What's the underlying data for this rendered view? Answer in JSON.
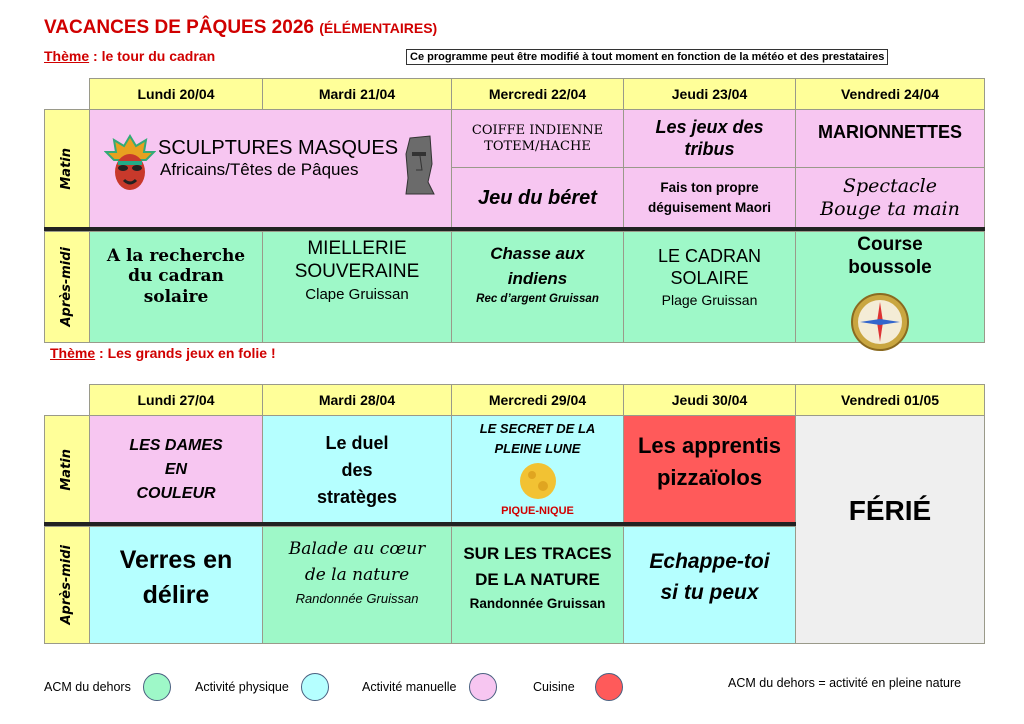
{
  "title": {
    "main": "VACANCES DE PÂQUES 2026",
    "sub": "(ÉLÉMENTAIRES)"
  },
  "notice": "Ce programme peut être modifié à tout moment en fonction de la météo et des prestataires",
  "theme_label": "Thème",
  "row_labels": {
    "morning": "Matin",
    "afternoon": "Après-midi"
  },
  "week1": {
    "theme": ": le tour du cadran",
    "days": [
      "Lundi 20/04",
      "Mardi 21/04",
      "Mercredi 22/04",
      "Jeudi 23/04",
      "Vendredi 24/04"
    ],
    "morning": {
      "lundi_mardi": {
        "line1": "SCULPTURES MASQUES",
        "line2": "Africains/Têtes de Pâques"
      },
      "mercredi_top": {
        "line1": "COIFFE INDIENNE",
        "line2": "TOTEM/HACHE"
      },
      "mercredi_bottom": "Jeu du béret",
      "jeudi_top": {
        "line1": "Les jeux des",
        "line2": "tribus"
      },
      "jeudi_bottom": {
        "line1": "Fais ton propre",
        "line2": "déguisement Maori"
      },
      "vendredi_top": "MARIONNETTES",
      "vendredi_bottom": {
        "line1": "Spectacle",
        "line2": "Bouge ta main"
      }
    },
    "afternoon": {
      "lundi": {
        "line1": "A la recherche",
        "line2": "du cadran",
        "line3": "solaire"
      },
      "mardi": {
        "line1": "MIELLERIE",
        "line2": "SOUVERAINE",
        "place": "Clape Gruissan"
      },
      "mercredi": {
        "line1": "Chasse aux",
        "line2": "indiens",
        "place": "Rec d’argent Gruissan"
      },
      "jeudi": {
        "line1": "LE CADRAN",
        "line2": "SOLAIRE",
        "place": "Plage Gruissan"
      },
      "vendredi": {
        "line1": "Course",
        "line2": "boussole"
      }
    }
  },
  "week2": {
    "theme": ": Les grands jeux en folie !",
    "days": [
      "Lundi 27/04",
      "Mardi 28/04",
      "Mercredi 29/04",
      "Jeudi 30/04",
      "Vendredi 01/05"
    ],
    "morning": {
      "lundi": {
        "line1": "LES DAMES",
        "line2": "EN",
        "line3": "COULEUR"
      },
      "mardi": {
        "line1": "Le duel",
        "line2": "des",
        "line3": "stratèges"
      },
      "mercredi": {
        "line1": "LE SECRET DE LA",
        "line2": "PLEINE LUNE",
        "note": "PIQUE-NIQUE"
      },
      "jeudi": {
        "line1": "Les apprentis",
        "line2": "pizzaïolos"
      }
    },
    "vendredi": "FÉRIÉ",
    "afternoon": {
      "lundi": {
        "line1": "Verres en",
        "line2": "délire"
      },
      "mardi": {
        "line1": "Balade au cœur",
        "line2": "de la nature",
        "place": "Randonnée Gruissan"
      },
      "mercredi": {
        "line1": "SUR LES TRACES",
        "line2": "DE LA NATURE",
        "place": "Randonnée Gruissan"
      },
      "jeudi": {
        "line1": "Echappe-toi",
        "line2": "si tu peux"
      }
    }
  },
  "legend": {
    "items": [
      {
        "label": "ACM du dehors",
        "color": "#9ef8c8"
      },
      {
        "label": "Activité physique",
        "color": "#b5ffff"
      },
      {
        "label": "Activité manuelle",
        "color": "#f7c6f1"
      },
      {
        "label": "Cuisine",
        "color": "#ff5a5a"
      }
    ],
    "note": "ACM du dehors = activité en pleine nature"
  }
}
